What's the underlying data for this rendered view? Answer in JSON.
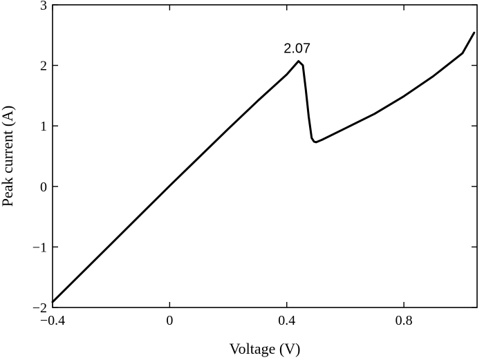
{
  "chart_data": {
    "type": "line",
    "xlabel": "Voltage (V)",
    "ylabel": "Peak current (A)",
    "xlim": [
      -0.4,
      1.05
    ],
    "ylim": [
      -2,
      3
    ],
    "xticks": [
      {
        "value": -0.4,
        "label": "−0.4"
      },
      {
        "value": 0,
        "label": "0"
      },
      {
        "value": 0.4,
        "label": "0.4"
      },
      {
        "value": 0.8,
        "label": "0.8"
      }
    ],
    "yticks": [
      {
        "value": -2,
        "label": "−2"
      },
      {
        "value": -1,
        "label": "−1"
      },
      {
        "value": 0,
        "label": "0"
      },
      {
        "value": 1,
        "label": "1"
      },
      {
        "value": 2,
        "label": "2"
      },
      {
        "value": 3,
        "label": "3"
      }
    ],
    "grid": false,
    "line_color": "#000000",
    "series": [
      {
        "x": [
          -0.4,
          -0.3,
          -0.2,
          -0.1,
          0.0,
          0.1,
          0.2,
          0.3,
          0.4,
          0.44,
          0.455,
          0.465,
          0.475,
          0.485,
          0.493,
          0.5,
          0.52,
          0.6,
          0.7,
          0.8,
          0.9,
          1.0,
          1.04
        ],
        "y": [
          -1.91,
          -1.43,
          -0.95,
          -0.47,
          0.01,
          0.48,
          0.95,
          1.41,
          1.85,
          2.07,
          2.0,
          1.6,
          1.15,
          0.8,
          0.74,
          0.73,
          0.77,
          0.96,
          1.2,
          1.49,
          1.82,
          2.2,
          2.54
        ]
      }
    ],
    "annotations": [
      {
        "text": "2.07",
        "x": 0.44,
        "y": 2.07
      }
    ]
  }
}
